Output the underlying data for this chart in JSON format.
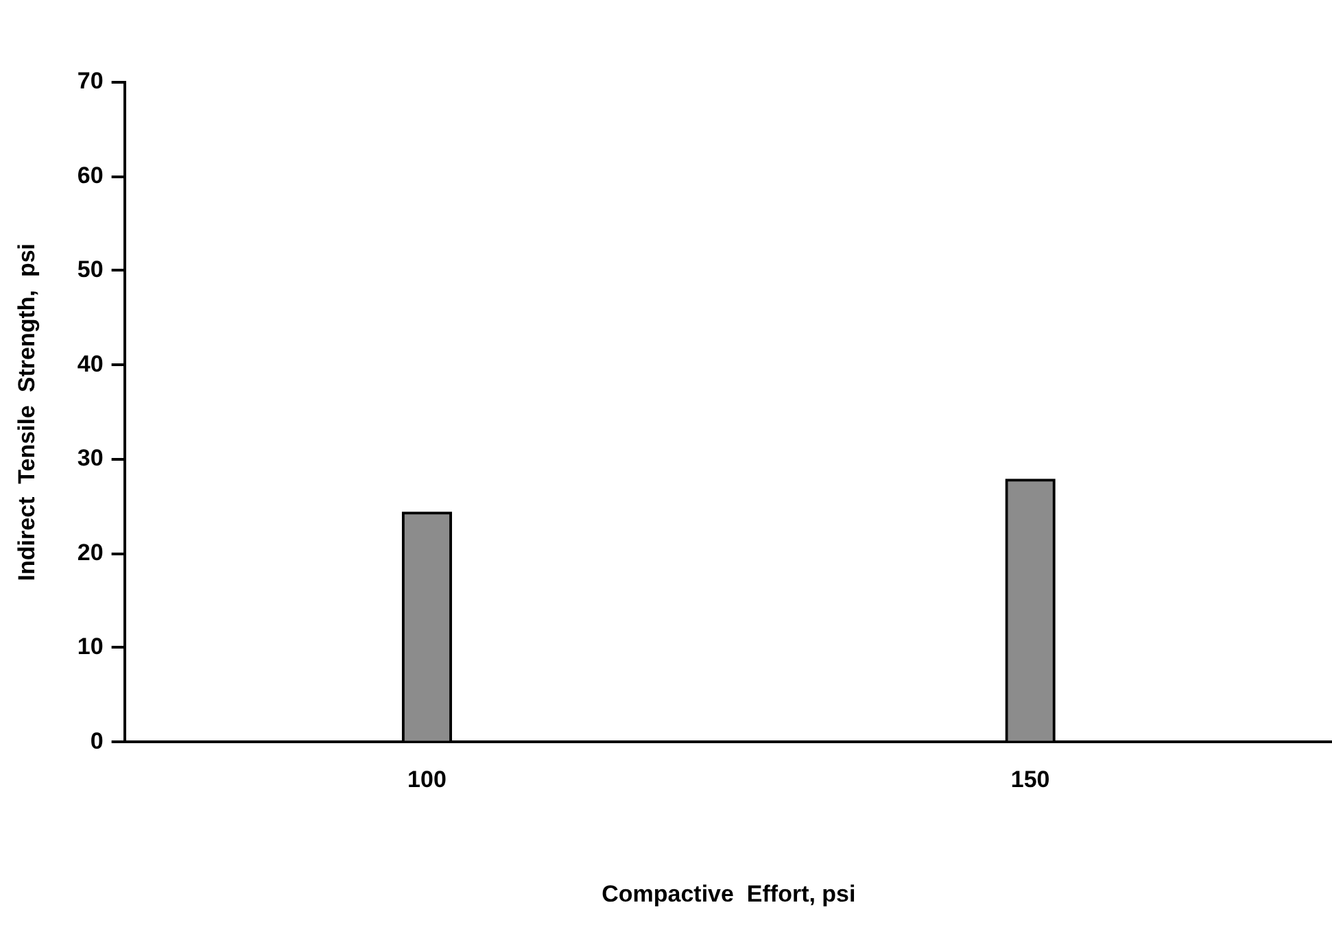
{
  "chart_data": {
    "type": "bar",
    "xlabel": "Compactive  Effort, psi",
    "ylabel": "Indirect  Tensile  Strength,  psi",
    "categories": [
      "100",
      "150"
    ],
    "values": [
      24.4,
      27.9
    ],
    "color": "#8c8c8c",
    "ylim": [
      0,
      70
    ],
    "yticks": [
      0,
      10,
      20,
      30,
      40,
      50,
      60,
      70
    ],
    "grid": false,
    "legend": false
  }
}
